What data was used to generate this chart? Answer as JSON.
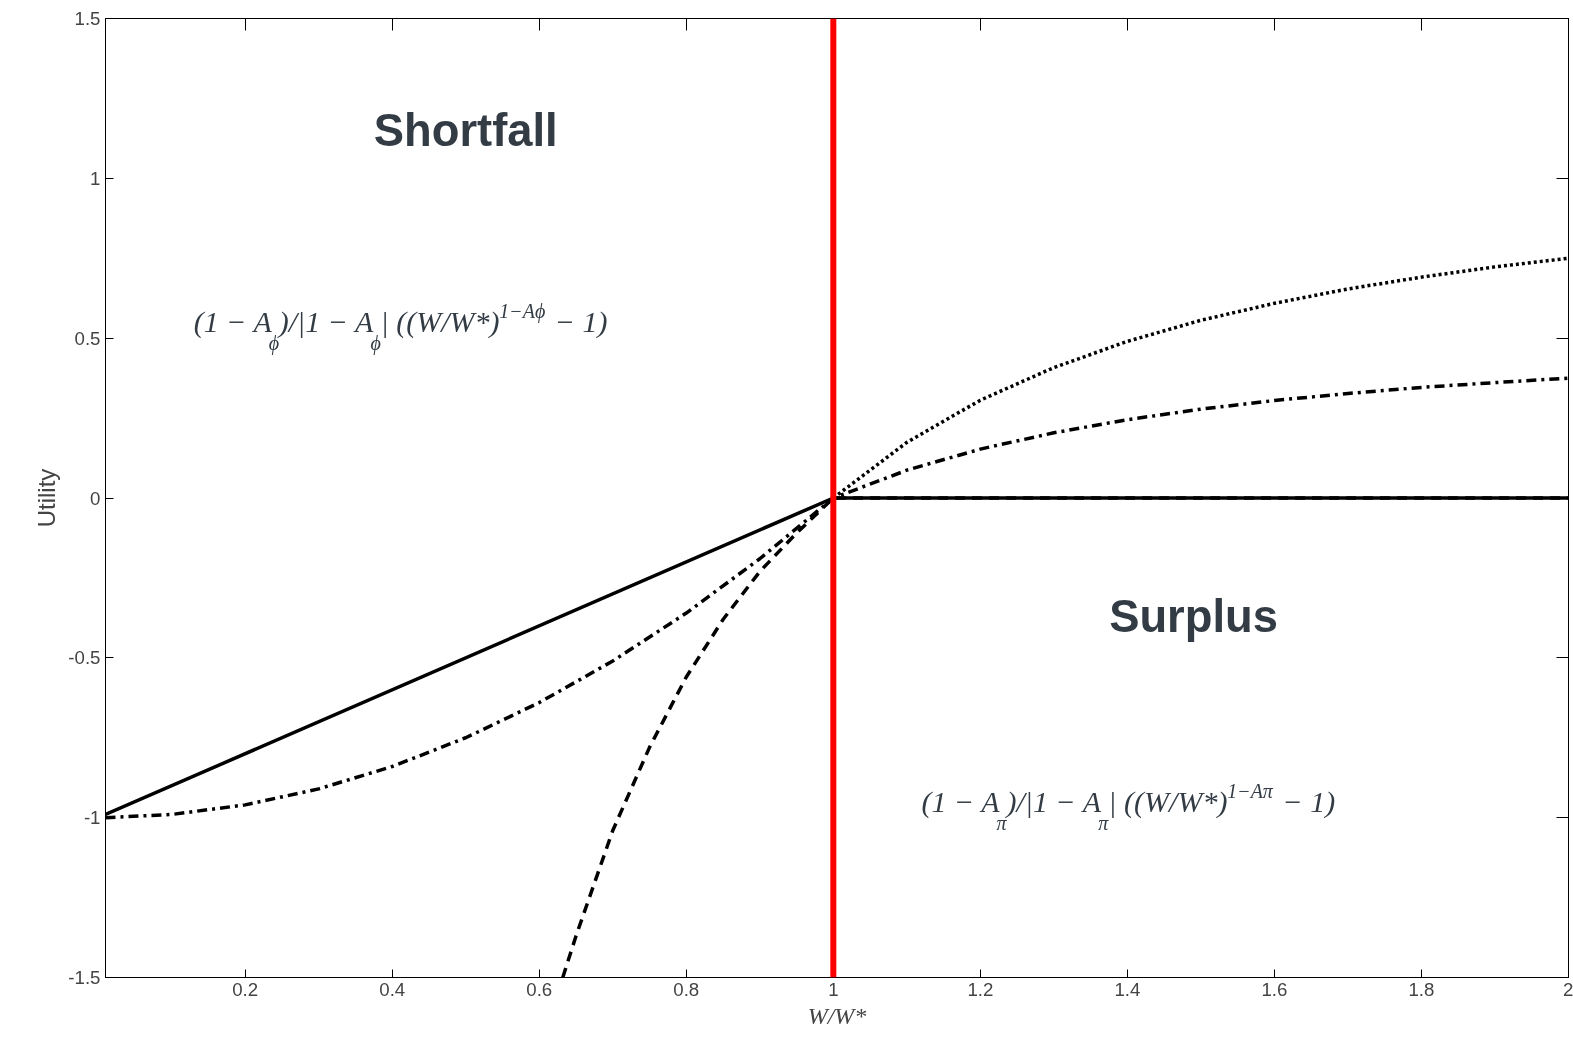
{
  "chart_data": {
    "type": "line",
    "xlabel": "W/W*",
    "ylabel": "Utility",
    "xlim": [
      0.01,
      2
    ],
    "ylim": [
      -1.5,
      1.5
    ],
    "xticks": [
      0.2,
      0.4,
      0.6,
      0.8,
      1,
      1.2,
      1.4,
      1.6,
      1.8,
      2
    ],
    "yticks": [
      -1.5,
      -1,
      -0.5,
      0,
      0.5,
      1,
      1.5
    ],
    "grid": false,
    "marker": "none",
    "series": [
      {
        "color": "#000000",
        "line_style": "solid",
        "x": [
          0.01,
          1,
          2
        ],
        "values": [
          -0.99,
          0,
          0
        ]
      },
      {
        "color": "#000000",
        "line_style": "dashdot",
        "x": [
          0.01,
          0.1,
          0.2,
          0.3,
          0.4,
          0.5,
          0.6,
          0.7,
          0.8,
          0.9,
          1,
          1.1,
          1.2,
          1.3,
          1.4,
          1.5,
          1.6,
          1.7,
          1.8,
          1.9,
          2
        ],
        "values": [
          -1.0,
          -0.99,
          -0.96,
          -0.91,
          -0.84,
          -0.75,
          -0.64,
          -0.51,
          -0.36,
          -0.19,
          0,
          0.087,
          0.153,
          0.204,
          0.245,
          0.278,
          0.305,
          0.327,
          0.346,
          0.361,
          0.375
        ]
      },
      {
        "color": "#000000",
        "line_style": "dashed",
        "x": [
          0.632,
          0.65,
          0.7,
          0.75,
          0.8,
          0.85,
          0.9,
          0.95,
          1,
          2
        ],
        "values": [
          -1.5,
          -1.37,
          -1.04,
          -0.78,
          -0.56,
          -0.38,
          -0.23,
          -0.11,
          0,
          0
        ]
      },
      {
        "color": "#000000",
        "line_style": "dotted",
        "x": [
          1,
          1.1,
          1.2,
          1.3,
          1.4,
          1.5,
          1.6,
          1.7,
          1.8,
          1.9,
          2
        ],
        "values": [
          0,
          0.174,
          0.306,
          0.408,
          0.49,
          0.556,
          0.609,
          0.654,
          0.691,
          0.723,
          0.75
        ]
      }
    ],
    "ref_lines": [
      {
        "axis": "x",
        "value": 1,
        "color": "#ff0000",
        "line_style": "solid"
      }
    ],
    "annotations": [
      "Shortfall",
      "(1 − A$_{ϕ}$)/|1 − A$_{ϕ}$| ((W/W*)$^{1−Aϕ}$ − 1)",
      "Surplus",
      "(1 − A$_{π}$)/|1 − A$_{π}$| ((W/W*)$^{1−Aπ}$ − 1)"
    ]
  }
}
